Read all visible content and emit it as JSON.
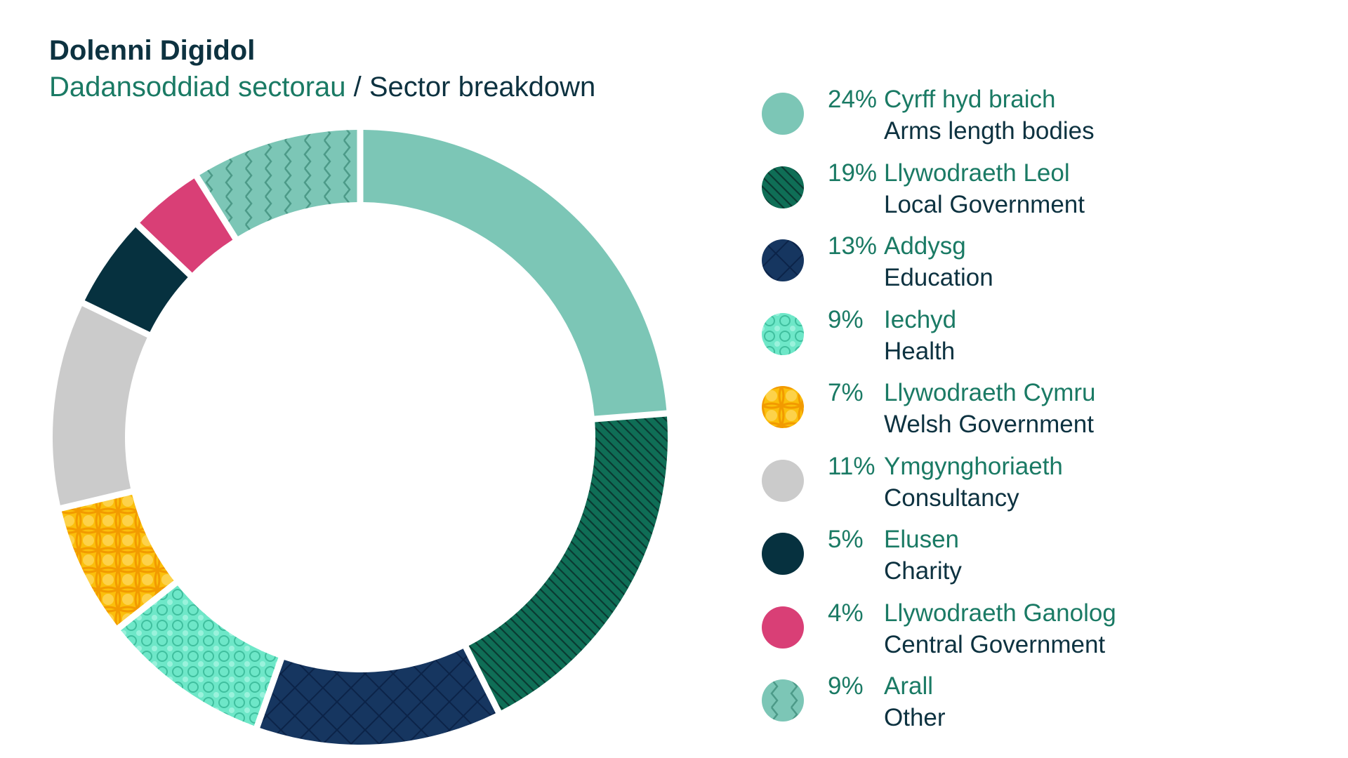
{
  "title": "Dolenni Digidol",
  "subtitle_welsh": "Dadansoddiad sectorau",
  "subtitle_sep": " / ",
  "subtitle_english": "Sector breakdown",
  "chart_data": {
    "type": "pie",
    "donut": true,
    "legend_position": "right",
    "slices": [
      {
        "pct_label": "24%",
        "value": 24,
        "welsh": "Cyrff hyd braich",
        "english": "Arms length bodies",
        "color": "#7cc6b6",
        "pattern": "solid"
      },
      {
        "pct_label": "19%",
        "value": 19,
        "welsh": "Llywodraeth Leol",
        "english": "Local Government",
        "color": "#0f6e56",
        "pattern": "diagonal-lines"
      },
      {
        "pct_label": "13%",
        "value": 13,
        "welsh": "Addysg",
        "english": "Education",
        "color": "#163660",
        "pattern": "crosshatch"
      },
      {
        "pct_label": "9%",
        "value": 9,
        "welsh": "Iechyd",
        "english": "Health",
        "color": "#6ee7c8",
        "pattern": "circles"
      },
      {
        "pct_label": "7%",
        "value": 7,
        "welsh": "Llywodraeth Cymru",
        "english": "Welsh Government",
        "color": "#fbbf0b",
        "pattern": "stars"
      },
      {
        "pct_label": "11%",
        "value": 11,
        "welsh": "Ymgynghoriaeth",
        "english": "Consultancy",
        "color": "#cbcbcb",
        "pattern": "solid"
      },
      {
        "pct_label": "5%",
        "value": 5,
        "welsh": "Elusen",
        "english": "Charity",
        "color": "#06313f",
        "pattern": "solid"
      },
      {
        "pct_label": "4%",
        "value": 4,
        "welsh": "Llywodraeth Ganolog",
        "english": "Central Government",
        "color": "#d93f76",
        "pattern": "solid"
      },
      {
        "pct_label": "9%",
        "value": 9,
        "welsh": "Arall",
        "english": "Other",
        "color": "#7cc6b6",
        "pattern": "zigzag"
      }
    ]
  }
}
